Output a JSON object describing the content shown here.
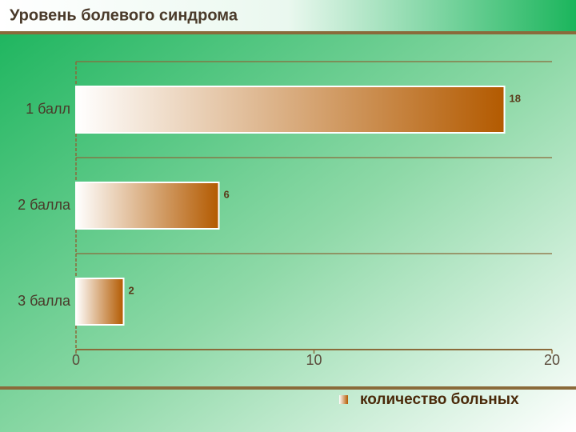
{
  "chart_data": {
    "type": "bar",
    "orientation": "horizontal",
    "title": "Уровень болевого синдрома",
    "categories": [
      "1 балл",
      "2 балла",
      "3 балла"
    ],
    "series": [
      {
        "name": "количество больных",
        "color": "#b35a00",
        "values": [
          18,
          6,
          2
        ]
      }
    ],
    "xlim": [
      0,
      20
    ],
    "xticks": [
      0,
      10,
      20
    ],
    "legend": "bottom-right"
  }
}
